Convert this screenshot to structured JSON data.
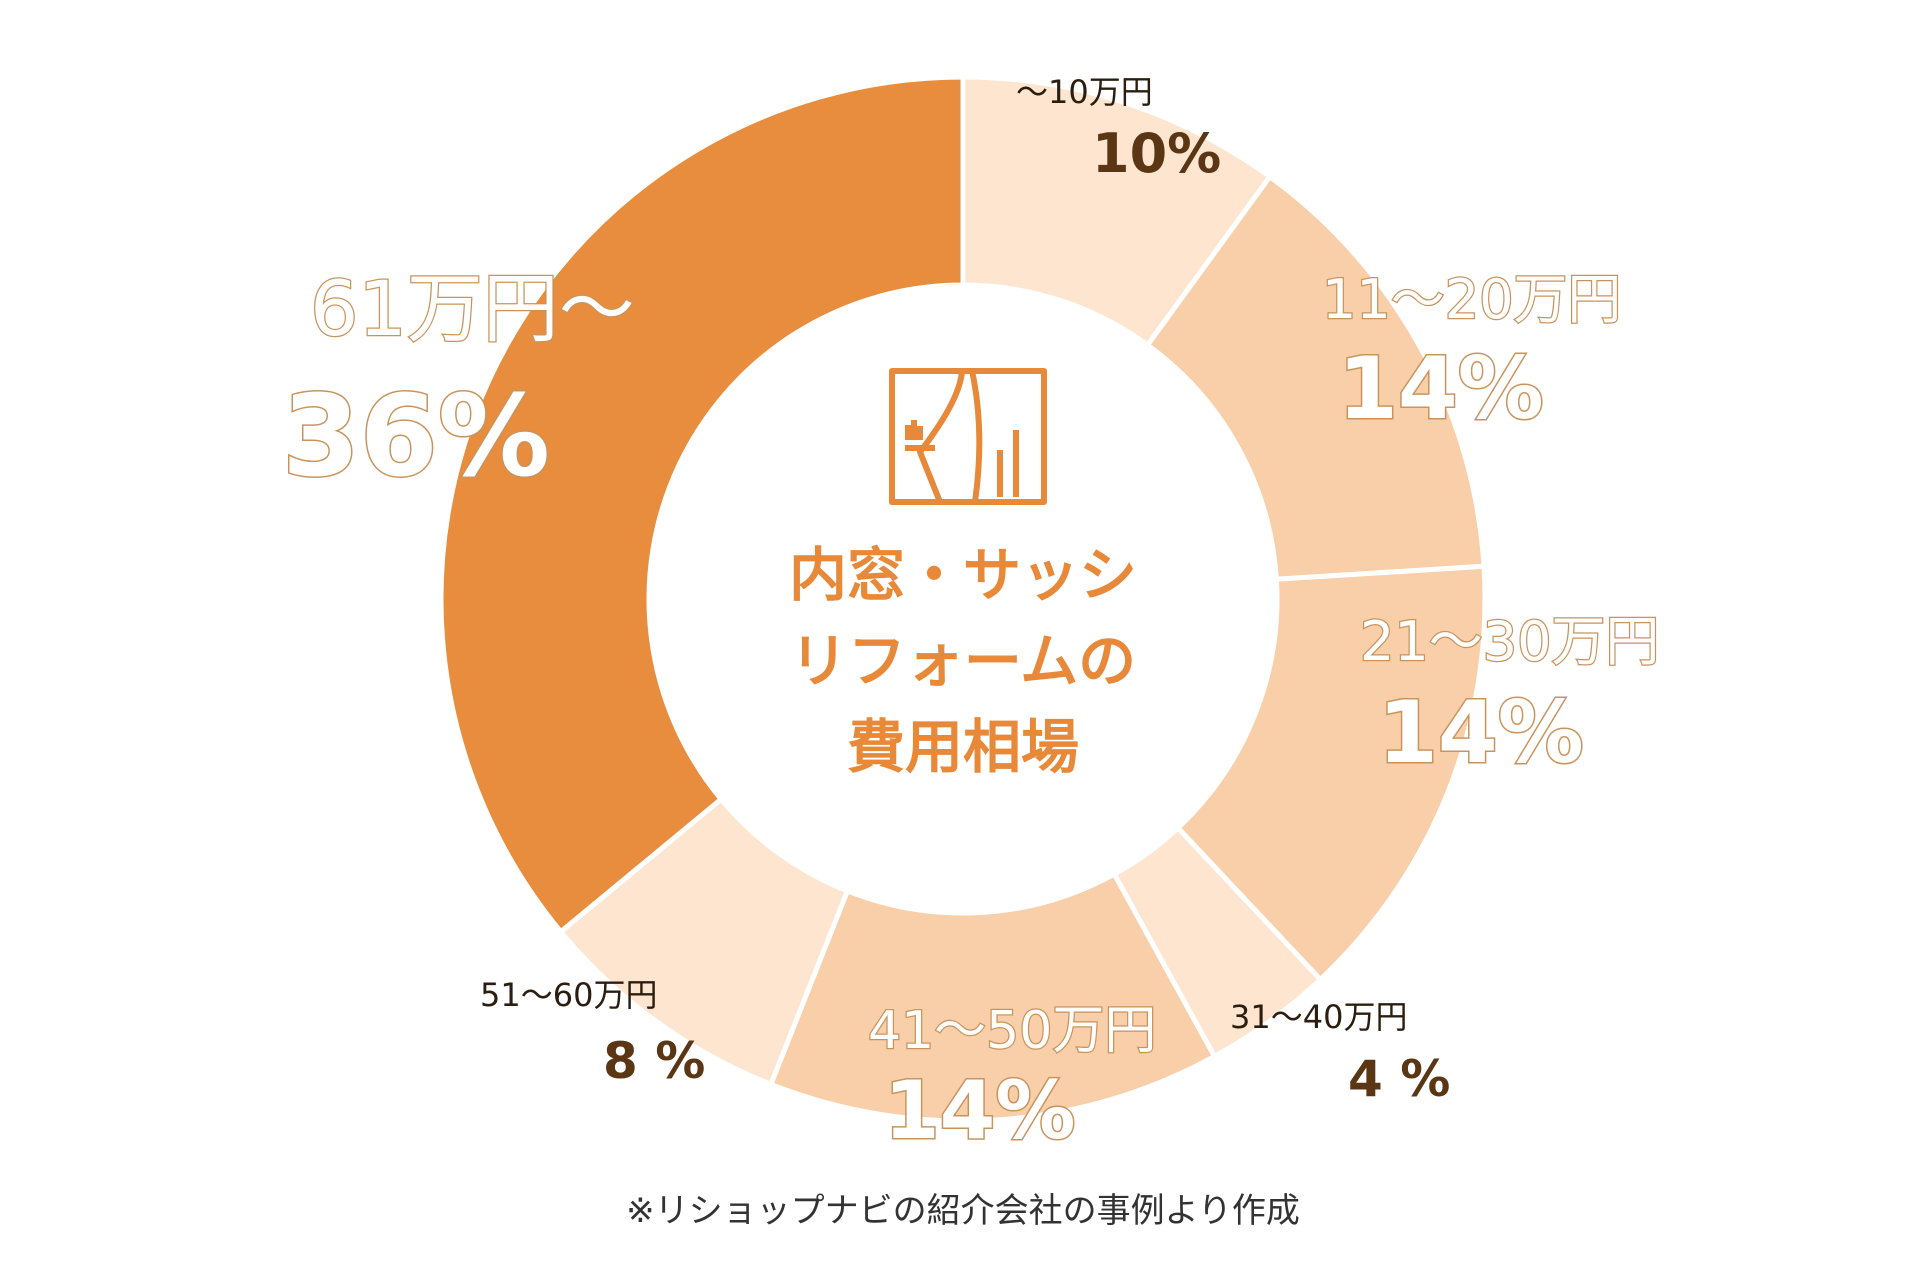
{
  "chart_data": {
    "type": "pie",
    "donut": true,
    "center_title": [
      "内窓・サッシ",
      "リフォームの",
      "費用相場"
    ],
    "center_icon": "curtain-window-icon",
    "categories": [
      "～10万円",
      "11～20万円",
      "21～30万円",
      "31～40万円",
      "41～50万円",
      "51～60万円",
      "61万円～"
    ],
    "values": [
      10,
      14,
      14,
      4,
      14,
      8,
      36
    ],
    "value_labels": [
      "10%",
      "14%",
      "14%",
      "4 %",
      "14%",
      "8 %",
      "36%"
    ],
    "colors": [
      "#fde5cf",
      "#f8cfa9",
      "#f8cfa9",
      "#fde5cf",
      "#f8cfa9",
      "#fde5cf",
      "#e88d3d"
    ],
    "footnote": "※リショップナビの紹介会社の事例より作成"
  }
}
